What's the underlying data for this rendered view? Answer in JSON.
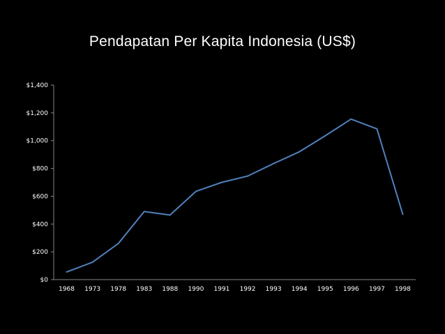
{
  "slide": {
    "title": "Pendapatan Per Kapita Indonesia (US$)"
  },
  "chart_data": {
    "type": "line",
    "title": "Pendapatan Per Kapita Indonesia (US$)",
    "xlabel": "",
    "ylabel": "",
    "categories": [
      "1968",
      "1973",
      "1978",
      "1983",
      "1988",
      "1990",
      "1991",
      "1992",
      "1993",
      "1994",
      "1995",
      "1996",
      "1997",
      "1998"
    ],
    "series": [
      {
        "values": [
          55,
          125,
          260,
          490,
          465,
          635,
          700,
          745,
          835,
          920,
          1035,
          1155,
          1085,
          470
        ],
        "color": "#4f81bd"
      }
    ],
    "ylim": [
      0,
      1400
    ],
    "yticks": [
      0,
      200,
      400,
      600,
      800,
      1000,
      1200,
      1400
    ],
    "ytick_labels": [
      "$0",
      "$200",
      "$400",
      "$600",
      "$800",
      "$1,000",
      "$1,200",
      "$1,400"
    ],
    "grid": false,
    "legend": "none",
    "axis_color": "#868686",
    "text_color": "#ffffff"
  }
}
